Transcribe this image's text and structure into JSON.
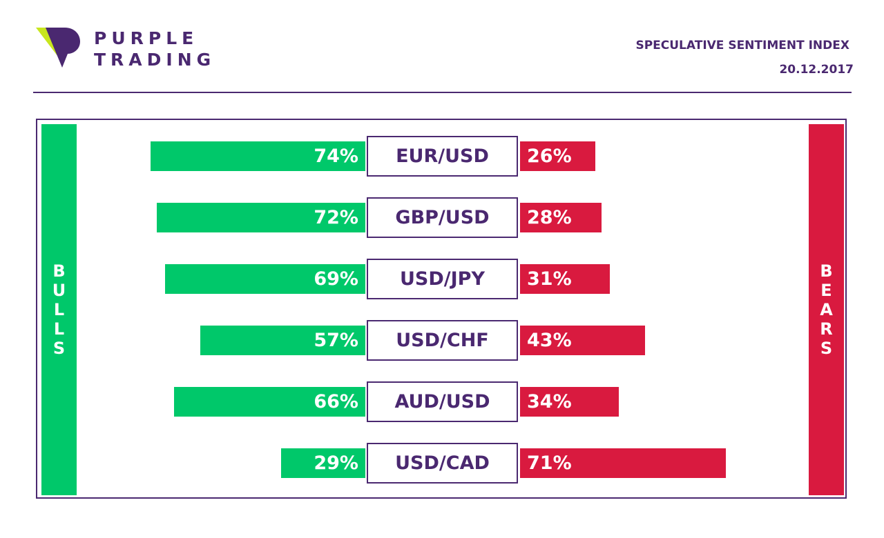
{
  "header": {
    "brand_line1": "PURPLE",
    "brand_line2": "TRADING",
    "index_title": "SPECULATIVE SENTIMENT INDEX",
    "date": "20.12.2017"
  },
  "labels": {
    "bulls": "BULLS",
    "bears": "BEARS"
  },
  "colors": {
    "bulls": "#00c86a",
    "bears": "#d91a3f",
    "purple": "#4a2870",
    "logo_green": "#c8e61e"
  },
  "chart_data": {
    "type": "bar",
    "categories": [
      "EUR/USD",
      "GBP/USD",
      "USD/JPY",
      "USD/CHF",
      "AUD/USD",
      "USD/CAD"
    ],
    "series": [
      {
        "name": "BULLS",
        "values": [
          74,
          72,
          69,
          57,
          66,
          29
        ],
        "labels": [
          "74%",
          "72%",
          "69%",
          "57%",
          "66%",
          "29%"
        ]
      },
      {
        "name": "BEARS",
        "values": [
          26,
          28,
          31,
          43,
          34,
          71
        ],
        "labels": [
          "26%",
          "28%",
          "31%",
          "43%",
          "34%",
          "71%"
        ]
      }
    ],
    "xlim": [
      0,
      100
    ],
    "grid": false
  }
}
